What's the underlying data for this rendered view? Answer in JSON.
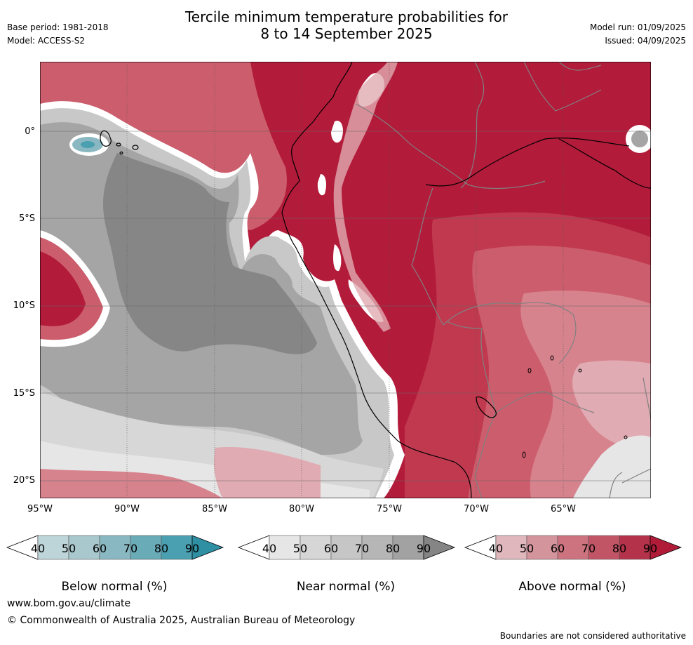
{
  "title_line1": "Tercile minimum temperature probabilities for",
  "title_line2": "8 to 14 September 2025",
  "meta": {
    "base_period": "Base period: 1981-2018",
    "model": "Model: ACCESS-S2",
    "model_run": "Model run: 01/09/2025",
    "issued": "Issued: 04/09/2025"
  },
  "map": {
    "lat_labels": [
      "0°",
      "5°S",
      "10°S",
      "15°S",
      "20°S"
    ],
    "lon_labels": [
      "95°W",
      "90°W",
      "85°W",
      "80°W",
      "75°W",
      "70°W",
      "65°W"
    ],
    "colors": {
      "above_90": "#b31b3a",
      "above_80": "#c0394f",
      "above_70": "#cc5d6c",
      "above_60": "#d7838e",
      "above_50": "#e0abb2",
      "near_90": "#868686",
      "near_80": "#a5a5a5",
      "near_70": "#b8b8b8",
      "near_60": "#c8c8c8",
      "near_50": "#d7d7d7",
      "near_40": "#e6e6e6",
      "below_70": "#8ab8c2",
      "below_80": "#4aa0b0",
      "coast": "#000000",
      "border": "#808080"
    }
  },
  "colorbars": [
    {
      "name": "Below normal (%)",
      "ticks": [
        "40",
        "50",
        "60",
        "70",
        "80",
        "90"
      ],
      "colors": [
        "#ffffff",
        "#bdd4d8",
        "#a8c8ce",
        "#8ab8c2",
        "#6aabb8",
        "#4aa0b0",
        "#2f8fa3"
      ]
    },
    {
      "name": "Near normal (%)",
      "ticks": [
        "40",
        "50",
        "60",
        "70",
        "80",
        "90"
      ],
      "colors": [
        "#ffffff",
        "#e6e6e6",
        "#d6d6d6",
        "#c6c6c6",
        "#b6b6b6",
        "#a2a2a2",
        "#858585"
      ]
    },
    {
      "name": "Above normal (%)",
      "ticks": [
        "40",
        "50",
        "60",
        "70",
        "80",
        "90"
      ],
      "colors": [
        "#ffffff",
        "#e0b7bc",
        "#d4949c",
        "#cc737f",
        "#c15566",
        "#b5334a",
        "#b01c38"
      ]
    }
  ],
  "footer": {
    "url": "www.bom.gov.au/climate",
    "copyright": "© Commonwealth of Australia 2025, Australian Bureau of Meteorology",
    "note": "Boundaries are not considered authoritative"
  }
}
